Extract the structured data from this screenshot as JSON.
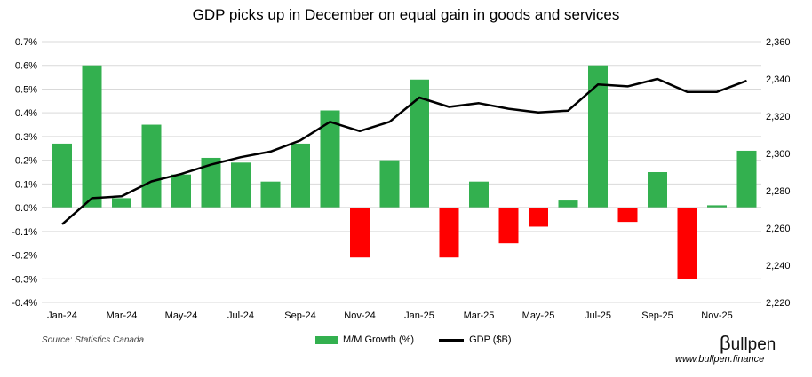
{
  "chart_data": {
    "type": "bar+line",
    "title": "GDP picks up in December on equal gain in goods and services",
    "categories": [
      "Jan-24",
      "Feb-24",
      "Mar-24",
      "Apr-24",
      "May-24",
      "Jun-24",
      "Jul-24",
      "Aug-24",
      "Sep-24",
      "Oct-24",
      "Nov-24",
      "Dec-24",
      "Jan-25",
      "Feb-25",
      "Mar-25",
      "Apr-25",
      "May-25",
      "Jun-25",
      "Jul-25",
      "Aug-25",
      "Sep-25",
      "Oct-25",
      "Nov-25",
      "Dec-25"
    ],
    "x_tick_labels": [
      "Jan-24",
      "Mar-24",
      "May-24",
      "Jul-24",
      "Sep-24",
      "Nov-24",
      "Jan-25",
      "Mar-25",
      "May-25",
      "Jul-25",
      "Sep-25",
      "Nov-25"
    ],
    "series": [
      {
        "name": "M/M Growth (%)",
        "type": "bar",
        "axis": "left",
        "color": "#33b04f",
        "negative_color": "#ff0000",
        "values": [
          0.27,
          0.6,
          0.04,
          0.35,
          0.14,
          0.21,
          0.19,
          0.11,
          0.27,
          0.41,
          -0.21,
          0.2,
          0.54,
          -0.21,
          0.11,
          -0.15,
          -0.08,
          0.03,
          0.6,
          -0.06,
          0.15,
          -0.3,
          0.01,
          0.24
        ]
      },
      {
        "name": "GDP ($B)",
        "type": "line",
        "axis": "right",
        "color": "#000000",
        "values": [
          2262,
          2276,
          2277,
          2285,
          2289,
          2294,
          2298,
          2301,
          2307,
          2317,
          2312,
          2317,
          2330,
          2325,
          2327,
          2324,
          2322,
          2323,
          2337,
          2336,
          2340,
          2333,
          2333,
          2339
        ]
      }
    ],
    "left_axis": {
      "ylim": [
        -0.4,
        0.7
      ],
      "step": 0.1,
      "ticks": [
        "-0.4%",
        "-0.3%",
        "-0.2%",
        "-0.1%",
        "0.0%",
        "0.1%",
        "0.2%",
        "0.3%",
        "0.4%",
        "0.5%",
        "0.6%",
        "0.7%"
      ]
    },
    "right_axis": {
      "ylim": [
        2220,
        2360
      ],
      "step": 20,
      "ticks": [
        "2,220",
        "2,240",
        "2,260",
        "2,280",
        "2,300",
        "2,320",
        "2,340",
        "2,360"
      ]
    },
    "grid": true,
    "legend": "bottom-center"
  },
  "footer": {
    "source": "Source: Statistics Canada",
    "logo": "Bullpen",
    "website": "www.bullpen.finance"
  }
}
